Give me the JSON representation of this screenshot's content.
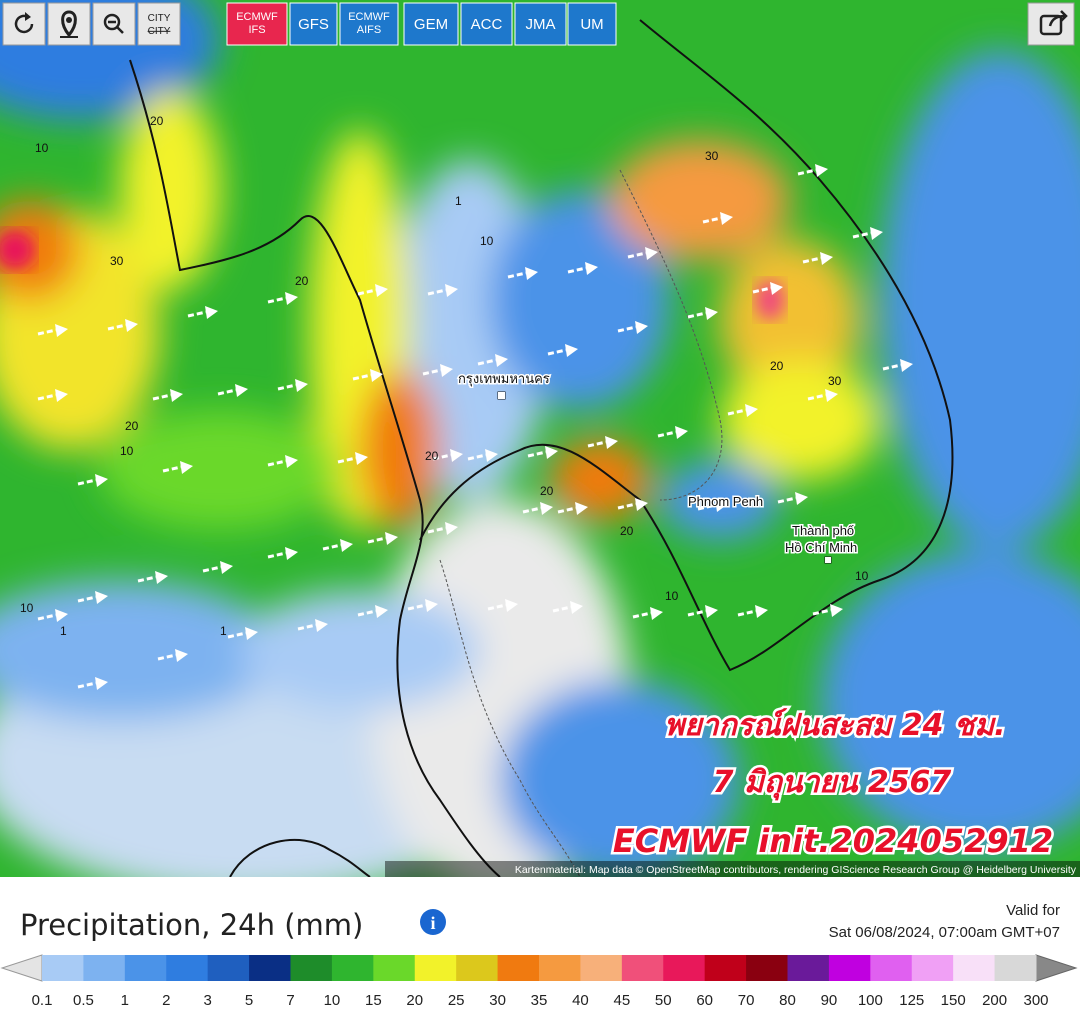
{
  "toolbar": {
    "city_toggle": [
      "CITY",
      "CITY"
    ],
    "models": [
      [
        "ECMWF",
        "IFS"
      ],
      [
        "GFS"
      ],
      [
        "ECMWF",
        "AIFS"
      ],
      [
        "GEM"
      ],
      [
        "ACC"
      ],
      [
        "JMA"
      ],
      [
        "UM"
      ]
    ]
  },
  "map": {
    "places": [
      "กรุงเทพมหานคร",
      "Phnom Penh",
      "Thành phố",
      "Hồ Chí Minh"
    ],
    "contour_labels": [
      "20",
      "10",
      "30",
      "20",
      "10",
      "20",
      "1",
      "10",
      "30",
      "20",
      "30",
      "20",
      "20",
      "10",
      "1",
      "1",
      "10",
      "20",
      "10"
    ],
    "overlay": [
      "พยากรณ์ฝนสะสม 24 ชม.",
      "7 มิถุนายน 2567",
      "ECMWF init.2024052912"
    ],
    "attribution": "Kartenmaterial: Map data © OpenStreetMap contributors, rendering GIScience Research Group @ Heidelberg University"
  },
  "legend": {
    "title": "Precipitation, 24h (mm)",
    "valid_label": "Valid for",
    "valid_time": "Sat 06/08/2024, 07:00am GMT+07",
    "ticks": [
      "0.1",
      "0.5",
      "1",
      "2",
      "3",
      "5",
      "7",
      "10",
      "15",
      "20",
      "25",
      "30",
      "35",
      "40",
      "45",
      "50",
      "60",
      "70",
      "80",
      "90",
      "100",
      "125",
      "150",
      "200",
      "300"
    ],
    "colors": [
      "#a8cbf5",
      "#7db2f0",
      "#4b93e8",
      "#2f7de0",
      "#1f5fbf",
      "#0a2f85",
      "#1e8c2a",
      "#2fb52f",
      "#6ad82a",
      "#f2f22a",
      "#dcc81c",
      "#f07a10",
      "#f59a40",
      "#f7b07a",
      "#f0507a",
      "#e8185a",
      "#c0001a",
      "#8a0010",
      "#6a1a9a",
      "#c000e0",
      "#e060f0",
      "#f0a0f5",
      "#f8e0f8",
      "#d8d8d8"
    ],
    "under_color": "#e4e4e4",
    "over_color": "#888888"
  }
}
